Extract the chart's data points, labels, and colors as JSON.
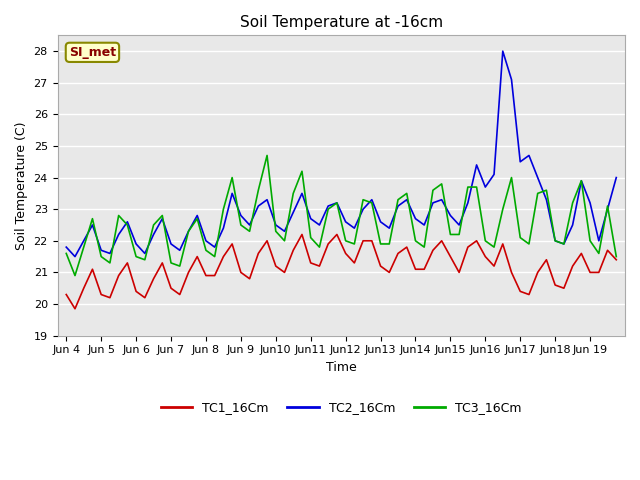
{
  "title": "Soil Temperature at -16cm",
  "xlabel": "Time",
  "ylabel": "Soil Temperature (C)",
  "ylim": [
    19.0,
    28.5
  ],
  "yticks": [
    19.0,
    20.0,
    21.0,
    22.0,
    23.0,
    24.0,
    25.0,
    26.0,
    27.0,
    28.0
  ],
  "fig_bg_color": "#ffffff",
  "plot_bg_color": "#e8e8e8",
  "grid_color": "#ffffff",
  "annotation_text": "SI_met",
  "annotation_bg": "#ffffcc",
  "annotation_fg": "#880000",
  "annotation_edge": "#888800",
  "series": {
    "TC1_16Cm": {
      "color": "#cc0000",
      "linewidth": 1.2
    },
    "TC2_16Cm": {
      "color": "#0000dd",
      "linewidth": 1.2
    },
    "TC3_16Cm": {
      "color": "#00aa00",
      "linewidth": 1.2
    }
  },
  "x_labels": [
    "Jun 4",
    "Jun 5",
    "Jun 6",
    "Jun 7",
    "Jun 8",
    "Jun 9",
    "Jun10",
    "Jun11",
    "Jun12",
    "Jun13",
    "Jun14",
    "Jun15",
    "Jun16",
    "Jun17",
    "Jun18",
    "Jun 19"
  ],
  "TC1_16Cm": [
    20.3,
    19.85,
    20.5,
    21.1,
    20.3,
    20.2,
    20.9,
    21.3,
    20.4,
    20.2,
    20.8,
    21.3,
    20.5,
    20.3,
    21.0,
    21.5,
    20.9,
    20.9,
    21.5,
    21.9,
    21.0,
    20.8,
    21.6,
    22.0,
    21.2,
    21.0,
    21.7,
    22.2,
    21.3,
    21.2,
    21.9,
    22.2,
    21.6,
    21.3,
    22.0,
    22.0,
    21.2,
    21.0,
    21.6,
    21.8,
    21.1,
    21.1,
    21.7,
    22.0,
    21.5,
    21.0,
    21.8,
    22.0,
    21.5,
    21.2,
    21.9,
    21.0,
    20.4,
    20.3,
    21.0,
    21.4,
    20.6,
    20.5,
    21.2,
    21.6,
    21.0,
    21.0,
    21.7,
    21.4
  ],
  "TC2_16Cm": [
    21.8,
    21.5,
    22.0,
    22.5,
    21.7,
    21.6,
    22.2,
    22.6,
    21.9,
    21.6,
    22.2,
    22.7,
    21.9,
    21.7,
    22.3,
    22.8,
    22.0,
    21.8,
    22.4,
    23.5,
    22.8,
    22.5,
    23.1,
    23.3,
    22.5,
    22.3,
    22.9,
    23.5,
    22.7,
    22.5,
    23.1,
    23.2,
    22.6,
    22.4,
    23.0,
    23.3,
    22.6,
    22.4,
    23.1,
    23.3,
    22.7,
    22.5,
    23.2,
    23.3,
    22.8,
    22.5,
    23.2,
    24.4,
    23.7,
    24.1,
    28.0,
    27.1,
    24.5,
    24.7,
    24.0,
    23.3,
    22.0,
    21.9,
    22.5,
    23.9,
    23.2,
    22.0,
    23.0,
    24.0
  ],
  "TC3_16Cm": [
    21.6,
    20.9,
    21.8,
    22.7,
    21.5,
    21.3,
    22.8,
    22.5,
    21.5,
    21.4,
    22.5,
    22.8,
    21.3,
    21.2,
    22.3,
    22.7,
    21.7,
    21.5,
    23.0,
    24.0,
    22.5,
    22.3,
    23.6,
    24.7,
    22.3,
    22.0,
    23.5,
    24.2,
    22.1,
    21.8,
    23.0,
    23.2,
    22.0,
    21.9,
    23.3,
    23.2,
    21.9,
    21.9,
    23.3,
    23.5,
    22.0,
    21.8,
    23.6,
    23.8,
    22.2,
    22.2,
    23.7,
    23.7,
    22.0,
    21.8,
    23.0,
    24.0,
    22.1,
    21.9,
    23.5,
    23.6,
    22.0,
    21.9,
    23.2,
    23.9,
    22.0,
    21.6,
    23.1,
    21.5
  ]
}
